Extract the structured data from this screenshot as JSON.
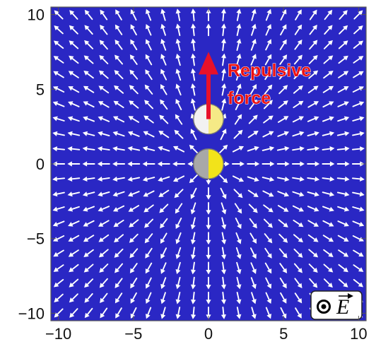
{
  "chart_data": {
    "type": "vector-field",
    "xlim": [
      -10.5,
      10.5
    ],
    "ylim": [
      -10.5,
      10.5
    ],
    "x_ticks": [
      -10,
      -5,
      0,
      5,
      10
    ],
    "y_ticks": [
      -10,
      -5,
      0,
      5,
      10
    ],
    "x_tick_labels": [
      "−10",
      "−5",
      "0",
      "5",
      "10"
    ],
    "y_tick_labels": [
      "−10",
      "−5",
      "0",
      "5",
      "10"
    ],
    "grid": false,
    "field": {
      "pattern": "radial-outward",
      "source_center": [
        0,
        0
      ],
      "sample_spacing": 1,
      "sample_extent": [
        -10,
        10
      ]
    },
    "bodies": [
      {
        "name": "central-charge",
        "center": [
          0,
          0
        ],
        "radius": 1,
        "left_color": "#a8a8a8",
        "right_color": "#f2e31a"
      },
      {
        "name": "moving-charge",
        "center": [
          0,
          3
        ],
        "radius": 1,
        "left_color": "#f2f2f2",
        "right_color": "#f5ea86"
      }
    ],
    "force_arrow": {
      "from": [
        0,
        3
      ],
      "to": [
        0,
        7.5
      ],
      "color": "#e8112a"
    },
    "annotation": {
      "lines": [
        "Repulsive",
        "force"
      ],
      "color": "#ee1111"
    },
    "legend_symbol": {
      "label": "E",
      "placement": "bottom-right"
    },
    "colors": {
      "background": "#2a27c4",
      "arrows": "#ffffff",
      "frame": "#555555"
    }
  }
}
